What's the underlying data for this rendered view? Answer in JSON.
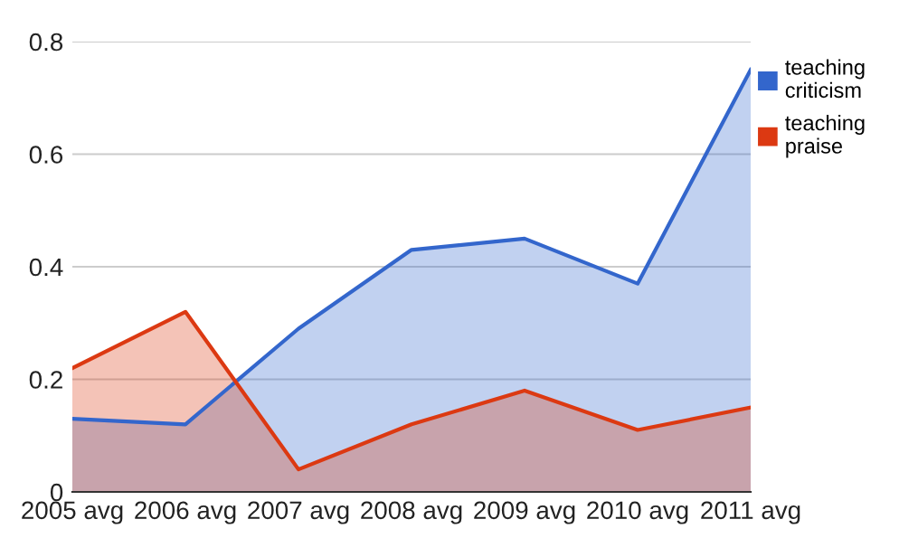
{
  "chart_data": {
    "type": "area",
    "categories": [
      "2005 avg",
      "2006 avg",
      "2007 avg",
      "2008 avg",
      "2009 avg",
      "2010 avg",
      "2011 avg"
    ],
    "series": [
      {
        "name": "teaching criticism",
        "color": "#3366cc",
        "values": [
          0.13,
          0.12,
          0.29,
          0.43,
          0.45,
          0.37,
          0.75
        ]
      },
      {
        "name": "teaching praise",
        "color": "#dc3912",
        "values": [
          0.22,
          0.32,
          0.04,
          0.12,
          0.18,
          0.11,
          0.15
        ]
      }
    ],
    "ylim": [
      0,
      0.8
    ],
    "yticks": [
      {
        "value": 0,
        "label": "0"
      },
      0.2,
      0.4,
      0.6,
      0.8
    ],
    "grid": "y",
    "legend": "top right"
  }
}
